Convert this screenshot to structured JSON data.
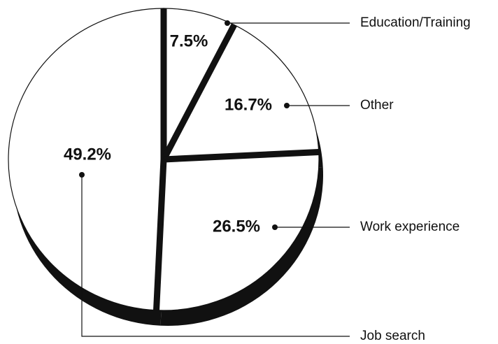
{
  "chart_data": {
    "type": "pie",
    "categories": [
      "Education/Training",
      "Other",
      "Work experience",
      "Job search"
    ],
    "values": [
      7.5,
      16.7,
      26.5,
      49.2
    ],
    "value_labels": [
      "7.5%",
      "16.7%",
      "26.5%",
      "49.2%"
    ],
    "colors": [
      "#ffffff",
      "#ffffff",
      "#ffffff",
      "#ffffff"
    ]
  }
}
